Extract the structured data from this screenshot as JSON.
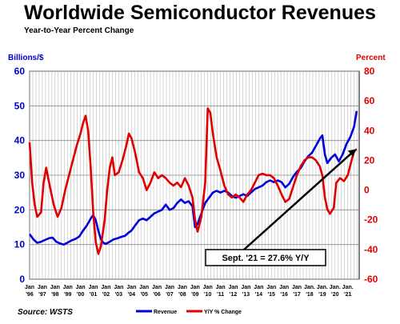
{
  "chart_data": {
    "type": "line",
    "title": "Worldwide Semiconductor Revenues",
    "subtitle": "Year-to-Year Percent Change",
    "y_left_label": "Billions/$",
    "y_right_label": "Percent",
    "y_left_ticks": [
      "0",
      "10",
      "20",
      "30",
      "40",
      "50",
      "60"
    ],
    "y_right_ticks": [
      "-60",
      "-40",
      "-20",
      "0",
      "20",
      "40",
      "60",
      "80"
    ],
    "ylim_left": [
      0,
      60
    ],
    "ylim_right": [
      -60,
      80
    ],
    "x_ticks": [
      {
        "top": "Jan",
        "bottom": "'96"
      },
      {
        "top": "Jan",
        "bottom": "'97"
      },
      {
        "top": "Jan",
        "bottom": "'98"
      },
      {
        "top": "Jan",
        "bottom": "'99"
      },
      {
        "top": "Jan",
        "bottom": "'00"
      },
      {
        "top": "Jan",
        "bottom": "'01"
      },
      {
        "top": "Jan",
        "bottom": "'02"
      },
      {
        "top": "Jan",
        "bottom": "'03"
      },
      {
        "top": "Jan",
        "bottom": "'04"
      },
      {
        "top": "Jan",
        "bottom": "'05"
      },
      {
        "top": "Jan",
        "bottom": "'06"
      },
      {
        "top": "Jan",
        "bottom": "'07"
      },
      {
        "top": "Jan",
        "bottom": "'08"
      },
      {
        "top": "Jan",
        "bottom": "'09"
      },
      {
        "top": "Jan",
        "bottom": "'10"
      },
      {
        "top": "Jan",
        "bottom": "'11"
      },
      {
        "top": "Jan",
        "bottom": "'12"
      },
      {
        "top": "Jan",
        "bottom": "'13"
      },
      {
        "top": "Jan",
        "bottom": "'14"
      },
      {
        "top": "Jan",
        "bottom": "'15"
      },
      {
        "top": "Jan",
        "bottom": "'16"
      },
      {
        "top": "Jan",
        "bottom": "'17"
      },
      {
        "top": "Jan.",
        "bottom": "'18"
      },
      {
        "top": "Jan.",
        "bottom": "'19"
      },
      {
        "top": "Jan.",
        "bottom": "'20"
      },
      {
        "top": "Jan.",
        "bottom": "'21"
      }
    ],
    "grid": true,
    "legend_position": "bottom",
    "annotation": "Sept. '21 = 27.6% Y/Y",
    "source": "Source: WSTS",
    "series": [
      {
        "name": "Revenue",
        "color": "#0000dd",
        "axis": "left",
        "points": [
          [
            1996.0,
            13.0
          ],
          [
            1996.3,
            11.5
          ],
          [
            1996.6,
            10.5
          ],
          [
            1996.9,
            10.8
          ],
          [
            1997.2,
            11.3
          ],
          [
            1997.5,
            11.8
          ],
          [
            1997.8,
            12.0
          ],
          [
            1998.1,
            10.8
          ],
          [
            1998.4,
            10.3
          ],
          [
            1998.7,
            10.0
          ],
          [
            1999.0,
            10.6
          ],
          [
            1999.3,
            11.2
          ],
          [
            1999.6,
            11.6
          ],
          [
            1999.9,
            12.3
          ],
          [
            2000.2,
            14.0
          ],
          [
            2000.5,
            15.5
          ],
          [
            2000.8,
            17.5
          ],
          [
            2001.0,
            18.5
          ],
          [
            2001.2,
            17.0
          ],
          [
            2001.4,
            14.0
          ],
          [
            2001.6,
            11.5
          ],
          [
            2001.8,
            10.5
          ],
          [
            2002.0,
            10.2
          ],
          [
            2002.3,
            10.8
          ],
          [
            2002.6,
            11.5
          ],
          [
            2002.9,
            11.8
          ],
          [
            2003.2,
            12.2
          ],
          [
            2003.5,
            12.5
          ],
          [
            2003.8,
            13.5
          ],
          [
            2004.0,
            14.0
          ],
          [
            2004.3,
            15.5
          ],
          [
            2004.6,
            17.0
          ],
          [
            2004.9,
            17.5
          ],
          [
            2005.2,
            17.0
          ],
          [
            2005.5,
            18.0
          ],
          [
            2005.8,
            19.0
          ],
          [
            2006.1,
            19.5
          ],
          [
            2006.4,
            20.0
          ],
          [
            2006.7,
            21.5
          ],
          [
            2007.0,
            20.0
          ],
          [
            2007.3,
            20.5
          ],
          [
            2007.6,
            22.0
          ],
          [
            2007.9,
            23.0
          ],
          [
            2008.2,
            22.0
          ],
          [
            2008.5,
            22.5
          ],
          [
            2008.8,
            21.0
          ],
          [
            2009.0,
            15.0
          ],
          [
            2009.2,
            16.0
          ],
          [
            2009.5,
            19.0
          ],
          [
            2009.8,
            22.0
          ],
          [
            2010.1,
            23.5
          ],
          [
            2010.4,
            25.0
          ],
          [
            2010.7,
            25.5
          ],
          [
            2011.0,
            25.0
          ],
          [
            2011.3,
            25.5
          ],
          [
            2011.6,
            25.0
          ],
          [
            2011.9,
            24.0
          ],
          [
            2012.2,
            23.5
          ],
          [
            2012.5,
            24.0
          ],
          [
            2012.8,
            24.5
          ],
          [
            2013.1,
            24.0
          ],
          [
            2013.4,
            25.0
          ],
          [
            2013.7,
            26.0
          ],
          [
            2014.0,
            26.5
          ],
          [
            2014.3,
            27.0
          ],
          [
            2014.6,
            28.0
          ],
          [
            2014.9,
            28.5
          ],
          [
            2015.2,
            28.0
          ],
          [
            2015.5,
            28.5
          ],
          [
            2015.8,
            28.0
          ],
          [
            2016.1,
            26.5
          ],
          [
            2016.4,
            27.5
          ],
          [
            2016.7,
            29.5
          ],
          [
            2017.0,
            31.0
          ],
          [
            2017.3,
            32.0
          ],
          [
            2017.6,
            34.0
          ],
          [
            2017.9,
            35.5
          ],
          [
            2018.2,
            36.5
          ],
          [
            2018.5,
            38.5
          ],
          [
            2018.8,
            40.5
          ],
          [
            2019.0,
            41.5
          ],
          [
            2019.2,
            36.0
          ],
          [
            2019.4,
            33.5
          ],
          [
            2019.7,
            35.0
          ],
          [
            2020.0,
            36.0
          ],
          [
            2020.3,
            34.0
          ],
          [
            2020.6,
            36.0
          ],
          [
            2020.9,
            39.0
          ],
          [
            2021.2,
            41.0
          ],
          [
            2021.5,
            44.0
          ],
          [
            2021.7,
            48.5
          ]
        ]
      },
      {
        "name": "Y/Y % Change",
        "color": "#e00000",
        "axis": "right",
        "points": [
          [
            1996.0,
            32
          ],
          [
            1996.2,
            5
          ],
          [
            1996.4,
            -10
          ],
          [
            1996.6,
            -18
          ],
          [
            1996.9,
            -15
          ],
          [
            1997.1,
            5
          ],
          [
            1997.3,
            15
          ],
          [
            1997.6,
            2
          ],
          [
            1997.9,
            -10
          ],
          [
            1998.2,
            -18
          ],
          [
            1998.5,
            -12
          ],
          [
            1998.8,
            0
          ],
          [
            1999.1,
            10
          ],
          [
            1999.4,
            20
          ],
          [
            1999.7,
            30
          ],
          [
            2000.0,
            38
          ],
          [
            2000.2,
            45
          ],
          [
            2000.4,
            50
          ],
          [
            2000.6,
            40
          ],
          [
            2000.8,
            15
          ],
          [
            2001.0,
            -15
          ],
          [
            2001.2,
            -35
          ],
          [
            2001.4,
            -43
          ],
          [
            2001.6,
            -38
          ],
          [
            2001.9,
            -20
          ],
          [
            2002.1,
            0
          ],
          [
            2002.3,
            15
          ],
          [
            2002.5,
            22
          ],
          [
            2002.7,
            10
          ],
          [
            2003.0,
            12
          ],
          [
            2003.3,
            20
          ],
          [
            2003.6,
            30
          ],
          [
            2003.8,
            38
          ],
          [
            2004.0,
            35
          ],
          [
            2004.3,
            25
          ],
          [
            2004.6,
            12
          ],
          [
            2004.9,
            8
          ],
          [
            2005.2,
            0
          ],
          [
            2005.5,
            5
          ],
          [
            2005.8,
            12
          ],
          [
            2006.1,
            8
          ],
          [
            2006.4,
            10
          ],
          [
            2006.7,
            8
          ],
          [
            2007.0,
            5
          ],
          [
            2007.3,
            3
          ],
          [
            2007.6,
            5
          ],
          [
            2007.9,
            2
          ],
          [
            2008.2,
            8
          ],
          [
            2008.5,
            3
          ],
          [
            2008.8,
            -5
          ],
          [
            2009.0,
            -20
          ],
          [
            2009.2,
            -28
          ],
          [
            2009.5,
            -18
          ],
          [
            2009.8,
            5
          ],
          [
            2010.0,
            55
          ],
          [
            2010.2,
            52
          ],
          [
            2010.4,
            38
          ],
          [
            2010.7,
            22
          ],
          [
            2011.0,
            13
          ],
          [
            2011.3,
            3
          ],
          [
            2011.6,
            -3
          ],
          [
            2011.9,
            -5
          ],
          [
            2012.2,
            -3
          ],
          [
            2012.5,
            -5
          ],
          [
            2012.8,
            -8
          ],
          [
            2013.1,
            -3
          ],
          [
            2013.4,
            0
          ],
          [
            2013.7,
            5
          ],
          [
            2014.0,
            10
          ],
          [
            2014.3,
            11
          ],
          [
            2014.6,
            10
          ],
          [
            2014.9,
            10
          ],
          [
            2015.2,
            8
          ],
          [
            2015.5,
            3
          ],
          [
            2015.8,
            -3
          ],
          [
            2016.1,
            -8
          ],
          [
            2016.4,
            -6
          ],
          [
            2016.7,
            2
          ],
          [
            2017.0,
            10
          ],
          [
            2017.3,
            16
          ],
          [
            2017.6,
            20
          ],
          [
            2017.9,
            22
          ],
          [
            2018.2,
            22
          ],
          [
            2018.5,
            20
          ],
          [
            2018.8,
            16
          ],
          [
            2019.0,
            10
          ],
          [
            2019.2,
            -5
          ],
          [
            2019.4,
            -13
          ],
          [
            2019.6,
            -16
          ],
          [
            2019.9,
            -12
          ],
          [
            2020.1,
            5
          ],
          [
            2020.4,
            8
          ],
          [
            2020.7,
            6
          ],
          [
            2021.0,
            10
          ],
          [
            2021.3,
            20
          ],
          [
            2021.5,
            26
          ],
          [
            2021.7,
            27.6
          ]
        ]
      }
    ]
  }
}
